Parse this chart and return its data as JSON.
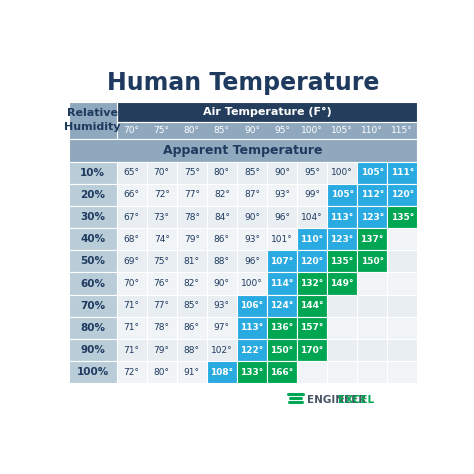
{
  "title": "Human Temperature",
  "air_temp_header": "Air Temperature (F°)",
  "apparent_temp_header": "Apparent Temperature",
  "relative_humidity_label": "Relative\nHumidity",
  "air_temps": [
    "70°",
    "75°",
    "80°",
    "85°",
    "90°",
    "95°",
    "100°",
    "105°",
    "110°",
    "115°"
  ],
  "humidity_rows": [
    "10%",
    "20%",
    "30%",
    "40%",
    "50%",
    "60%",
    "70%",
    "80%",
    "90%",
    "100%"
  ],
  "table_data": [
    [
      "65°",
      "70°",
      "75°",
      "80°",
      "85°",
      "90°",
      "95°",
      "100°",
      "105°",
      "111°"
    ],
    [
      "66°",
      "72°",
      "77°",
      "82°",
      "87°",
      "93°",
      "99°",
      "105°",
      "112°",
      "120°"
    ],
    [
      "67°",
      "73°",
      "78°",
      "84°",
      "90°",
      "96°",
      "104°",
      "113°",
      "123°",
      "135°"
    ],
    [
      "68°",
      "74°",
      "79°",
      "86°",
      "93°",
      "101°",
      "110°",
      "123°",
      "137°",
      null
    ],
    [
      "69°",
      "75°",
      "81°",
      "88°",
      "96°",
      "107°",
      "120°",
      "135°",
      "150°",
      null
    ],
    [
      "70°",
      "76°",
      "82°",
      "90°",
      "100°",
      "114°",
      "132°",
      "149°",
      null,
      null
    ],
    [
      "71°",
      "77°",
      "85°",
      "93°",
      "106°",
      "124°",
      "144°",
      null,
      null,
      null
    ],
    [
      "71°",
      "78°",
      "86°",
      "97°",
      "113°",
      "136°",
      "157°",
      null,
      null,
      null
    ],
    [
      "71°",
      "79°",
      "88°",
      "102°",
      "122°",
      "150°",
      "170°",
      null,
      null,
      null
    ],
    [
      "72°",
      "80°",
      "91°",
      "108°",
      "133°",
      "166°",
      null,
      null,
      null,
      null
    ]
  ],
  "cell_colors": [
    [
      null,
      null,
      null,
      null,
      null,
      null,
      null,
      null,
      "blue",
      "blue"
    ],
    [
      null,
      null,
      null,
      null,
      null,
      null,
      null,
      "blue",
      "blue",
      "blue"
    ],
    [
      null,
      null,
      null,
      null,
      null,
      null,
      null,
      "blue",
      "blue",
      "green"
    ],
    [
      null,
      null,
      null,
      null,
      null,
      null,
      "blue",
      "blue",
      "green",
      null
    ],
    [
      null,
      null,
      null,
      null,
      null,
      "blue",
      "blue",
      "green",
      "green",
      null
    ],
    [
      null,
      null,
      null,
      null,
      null,
      "blue",
      "green",
      "green",
      null,
      null
    ],
    [
      null,
      null,
      null,
      null,
      "blue",
      "blue",
      "green",
      null,
      null,
      null
    ],
    [
      null,
      null,
      null,
      null,
      "blue",
      "green",
      "green",
      null,
      null,
      null
    ],
    [
      null,
      null,
      null,
      null,
      "blue",
      "green",
      "green",
      null,
      null,
      null
    ],
    [
      null,
      null,
      null,
      "blue",
      "green",
      "green",
      null,
      null,
      null,
      null
    ]
  ],
  "color_blue": "#29ABE2",
  "color_green": "#00A651",
  "color_header_dark": "#243D5C",
  "color_header_light": "#8FA8BE",
  "color_row_label_bg": "#B8CDD8",
  "color_white": "#FFFFFF",
  "color_light_bg_even": "#E8EEF2",
  "color_light_bg_odd": "#F0F4F7",
  "color_title": "#1F3A5F",
  "background_color": "#FFFFFF",
  "logo_text1": "ENGINEER",
  "logo_text2": "EXCEL",
  "logo_color1": "#4A5568",
  "logo_color2": "#00A651"
}
